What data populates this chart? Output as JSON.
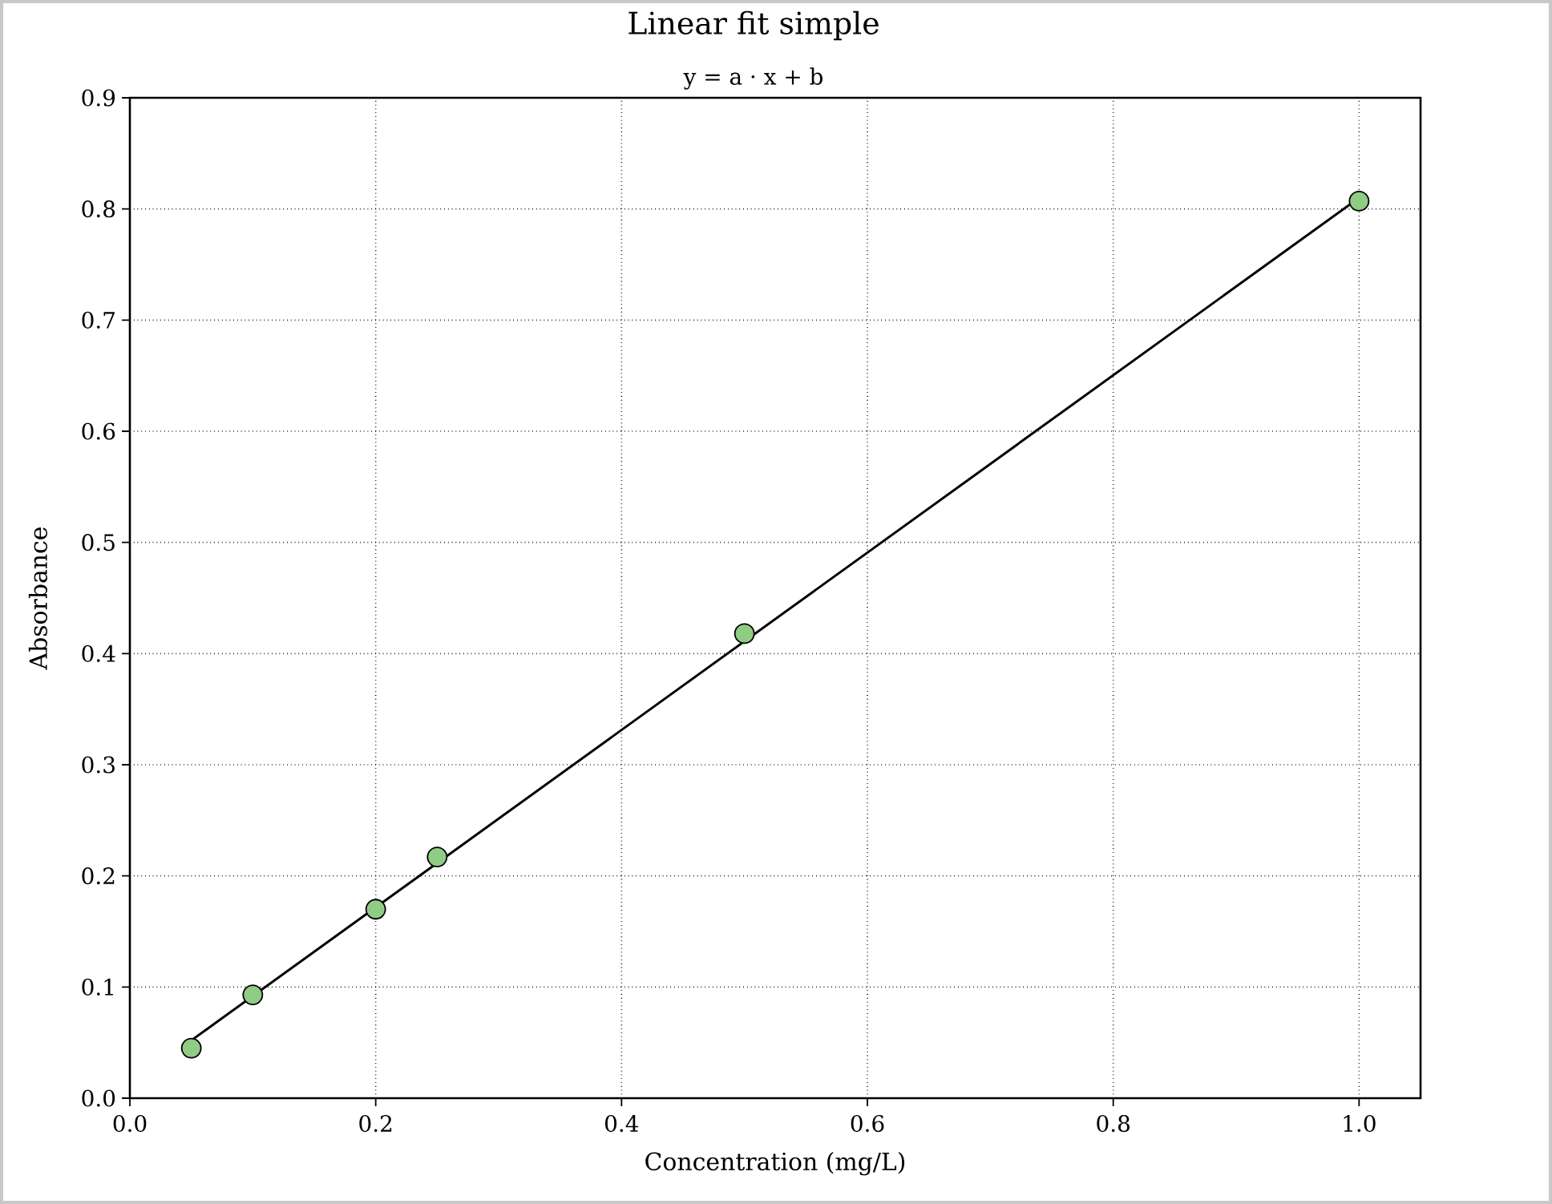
{
  "chart_data": {
    "type": "scatter",
    "title": "Linear fit simple",
    "subtitle": "y = a · x + b",
    "xlabel": "Concentration (mg/L)",
    "ylabel": "Absorbance",
    "series": [
      {
        "type": "line",
        "color": "#000000",
        "marker": "none",
        "x": [
          0.05,
          1.0
        ],
        "values": [
          0.052,
          0.81
        ]
      },
      {
        "color": "#90cc84",
        "x": [
          0.05,
          0.1,
          0.2,
          0.25,
          0.5,
          1.0
        ],
        "values": [
          0.045,
          0.093,
          0.17,
          0.217,
          0.418,
          0.807
        ]
      }
    ],
    "xlim": [
      0,
      1.05
    ],
    "ylim": [
      0,
      0.9
    ],
    "xticks": [
      {
        "value": 0,
        "label": "0.0"
      },
      0.2,
      0.4,
      0.6,
      0.8,
      {
        "value": 1,
        "label": "1.0"
      }
    ],
    "yticks": [
      {
        "value": 0,
        "label": "0.0"
      },
      0.1,
      0.2,
      0.3,
      0.4,
      0.5,
      0.6,
      0.7,
      0.8,
      0.9
    ],
    "grid": true,
    "marker": "circle",
    "line_style": "solid"
  }
}
